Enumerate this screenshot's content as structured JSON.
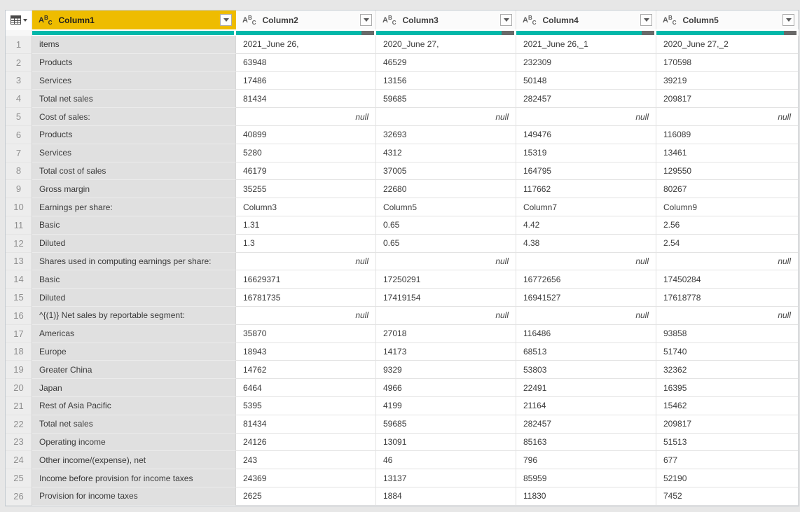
{
  "app": {
    "name": "Power Query data preview",
    "accent_teal": "#01b8aa",
    "selected_header_gold": "#eebc00",
    "quality_empty_gray": "#696969"
  },
  "table": {
    "null_label": "null",
    "type_icon_label": "ABC",
    "columns": [
      {
        "name": "Column1",
        "type": "text",
        "selected": true,
        "has_empty_segment": false
      },
      {
        "name": "Column2",
        "type": "text",
        "selected": false,
        "has_empty_segment": true
      },
      {
        "name": "Column3",
        "type": "text",
        "selected": false,
        "has_empty_segment": true
      },
      {
        "name": "Column4",
        "type": "text",
        "selected": false,
        "has_empty_segment": true
      },
      {
        "name": "Column5",
        "type": "text",
        "selected": false,
        "has_empty_segment": true
      }
    ],
    "rows": [
      {
        "num": 1,
        "cells": [
          "items",
          "2021_June 26,",
          "2020_June 27,",
          "2021_June 26,_1",
          "2020_June 27,_2"
        ]
      },
      {
        "num": 2,
        "cells": [
          "Products",
          "63948",
          "46529",
          "232309",
          "170598"
        ]
      },
      {
        "num": 3,
        "cells": [
          "Services",
          "17486",
          "13156",
          "50148",
          "39219"
        ]
      },
      {
        "num": 4,
        "cells": [
          "Total net sales",
          "81434",
          "59685",
          "282457",
          "209817"
        ]
      },
      {
        "num": 5,
        "cells": [
          "Cost of sales:",
          null,
          null,
          null,
          null
        ]
      },
      {
        "num": 6,
        "cells": [
          "Products",
          "40899",
          "32693",
          "149476",
          "116089"
        ]
      },
      {
        "num": 7,
        "cells": [
          "Services",
          "5280",
          "4312",
          "15319",
          "13461"
        ]
      },
      {
        "num": 8,
        "cells": [
          "Total cost of sales",
          "46179",
          "37005",
          "164795",
          "129550"
        ]
      },
      {
        "num": 9,
        "cells": [
          "Gross margin",
          "35255",
          "22680",
          "117662",
          "80267"
        ]
      },
      {
        "num": 10,
        "cells": [
          "Earnings per share:",
          "Column3",
          "Column5",
          "Column7",
          "Column9"
        ]
      },
      {
        "num": 11,
        "cells": [
          "Basic",
          "1.31",
          "0.65",
          "4.42",
          "2.56"
        ]
      },
      {
        "num": 12,
        "cells": [
          "Diluted",
          "1.3",
          "0.65",
          "4.38",
          "2.54"
        ]
      },
      {
        "num": 13,
        "cells": [
          "Shares used in computing earnings per share:",
          null,
          null,
          null,
          null
        ]
      },
      {
        "num": 14,
        "cells": [
          "Basic",
          "16629371",
          "17250291",
          "16772656",
          "17450284"
        ]
      },
      {
        "num": 15,
        "cells": [
          "Diluted",
          "16781735",
          "17419154",
          "16941527",
          "17618778"
        ]
      },
      {
        "num": 16,
        "cells": [
          "^{(1)} Net sales by reportable segment:",
          null,
          null,
          null,
          null
        ]
      },
      {
        "num": 17,
        "cells": [
          "Americas",
          "35870",
          "27018",
          "116486",
          "93858"
        ]
      },
      {
        "num": 18,
        "cells": [
          "Europe",
          "18943",
          "14173",
          "68513",
          "51740"
        ]
      },
      {
        "num": 19,
        "cells": [
          "Greater China",
          "14762",
          "9329",
          "53803",
          "32362"
        ]
      },
      {
        "num": 20,
        "cells": [
          "Japan",
          "6464",
          "4966",
          "22491",
          "16395"
        ]
      },
      {
        "num": 21,
        "cells": [
          "Rest of Asia Pacific",
          "5395",
          "4199",
          "21164",
          "15462"
        ]
      },
      {
        "num": 22,
        "cells": [
          "Total net sales",
          "81434",
          "59685",
          "282457",
          "209817"
        ]
      },
      {
        "num": 23,
        "cells": [
          "Operating income",
          "24126",
          "13091",
          "85163",
          "51513"
        ]
      },
      {
        "num": 24,
        "cells": [
          "Other income/(expense), net",
          "243",
          "46",
          "796",
          "677"
        ]
      },
      {
        "num": 25,
        "cells": [
          "Income before provision for income taxes",
          "24369",
          "13137",
          "85959",
          "52190"
        ]
      },
      {
        "num": 26,
        "cells": [
          "Provision for income taxes",
          "2625",
          "1884",
          "11830",
          "7452"
        ]
      }
    ]
  }
}
